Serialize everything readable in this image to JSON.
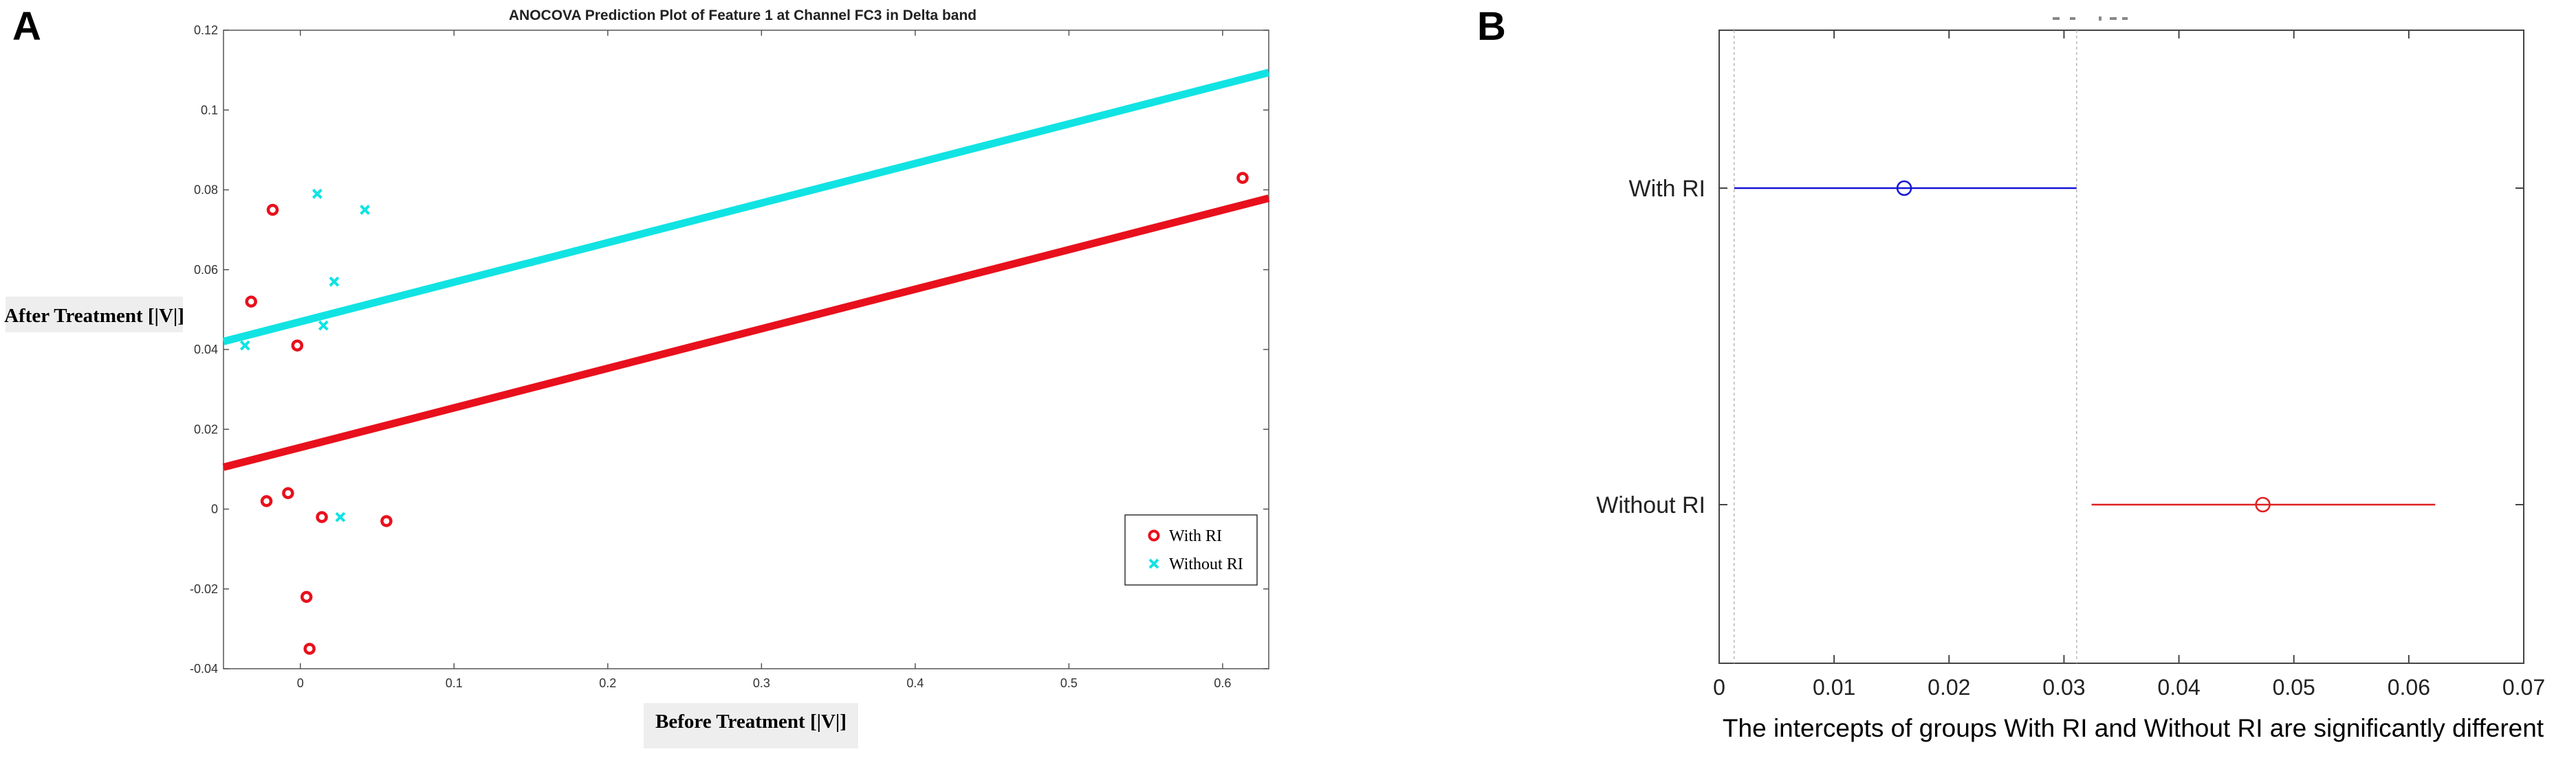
{
  "panels": {
    "a_label": "A",
    "b_label": "B"
  },
  "chart_data": [
    {
      "panel": "A",
      "type": "scatter",
      "title": "ANOCOVA Prediction Plot of Feature 1 at Channel FC3 in Delta band",
      "xlabel": "Before Treatment [|V|]",
      "ylabel": "After Treatment [|V|]",
      "xlim": [
        -0.05,
        0.63
      ],
      "ylim": [
        -0.04,
        0.12
      ],
      "xticks": [
        0,
        0.1,
        0.2,
        0.3,
        0.4,
        0.5,
        0.6
      ],
      "yticks": [
        -0.04,
        -0.02,
        0,
        0.02,
        0.04,
        0.06,
        0.08,
        0.1,
        0.12
      ],
      "xtick_labels": [
        "0",
        "0.1",
        "0.2",
        "0.3",
        "0.4",
        "0.5",
        "0.6"
      ],
      "ytick_labels": [
        "-0.04",
        "-0.02",
        "0",
        "0.02",
        "0.04",
        "0.06",
        "0.08",
        "0.1",
        "0.12"
      ],
      "legend_placement": "bottom-right",
      "grid": false,
      "series": [
        {
          "name": "With RI",
          "marker": "circle",
          "color": "#e8101c",
          "points": [
            [
              -0.018,
              0.075
            ],
            [
              -0.032,
              0.052
            ],
            [
              -0.002,
              0.041
            ],
            [
              -0.022,
              0.002
            ],
            [
              -0.008,
              0.004
            ],
            [
              0.014,
              -0.002
            ],
            [
              0.056,
              -0.003
            ],
            [
              0.004,
              -0.022
            ],
            [
              0.006,
              -0.035
            ],
            [
              0.613,
              0.083
            ]
          ]
        },
        {
          "name": "Without RI",
          "marker": "x",
          "color": "#11e3e3",
          "points": [
            [
              0.011,
              0.079
            ],
            [
              0.042,
              0.075
            ],
            [
              0.022,
              0.057
            ],
            [
              0.015,
              0.046
            ],
            [
              -0.036,
              0.041
            ],
            [
              0.026,
              -0.002
            ]
          ]
        }
      ],
      "fit_lines": [
        {
          "name": "With RI",
          "color": "#e8101c",
          "x": [
            -0.05,
            0.63
          ],
          "y": [
            0.0105,
            0.0779
          ]
        },
        {
          "name": "Without RI",
          "color": "#11e3e3",
          "x": [
            -0.05,
            0.63
          ],
          "y": [
            0.042,
            0.1094
          ]
        }
      ]
    },
    {
      "panel": "B",
      "type": "interval",
      "title": "",
      "xlabel": "The intercepts of groups With RI and Without RI are significantly different",
      "ylabel": "",
      "xlim": [
        0,
        0.07
      ],
      "xticks": [
        0,
        0.01,
        0.02,
        0.03,
        0.04,
        0.05,
        0.06,
        0.07
      ],
      "xtick_labels": [
        "0",
        "0.01",
        "0.02",
        "0.03",
        "0.04",
        "0.05",
        "0.06",
        "0.07"
      ],
      "categories": [
        "With RI",
        "Without RI"
      ],
      "reference_lines_x": [
        0.0013,
        0.0311
      ],
      "series": [
        {
          "name": "With RI",
          "color": "#1515d6",
          "estimate": 0.0161,
          "low": 0.0013,
          "high": 0.0311
        },
        {
          "name": "Without RI",
          "color": "#e02020",
          "estimate": 0.0473,
          "low": 0.0324,
          "high": 0.0623
        }
      ]
    }
  ]
}
